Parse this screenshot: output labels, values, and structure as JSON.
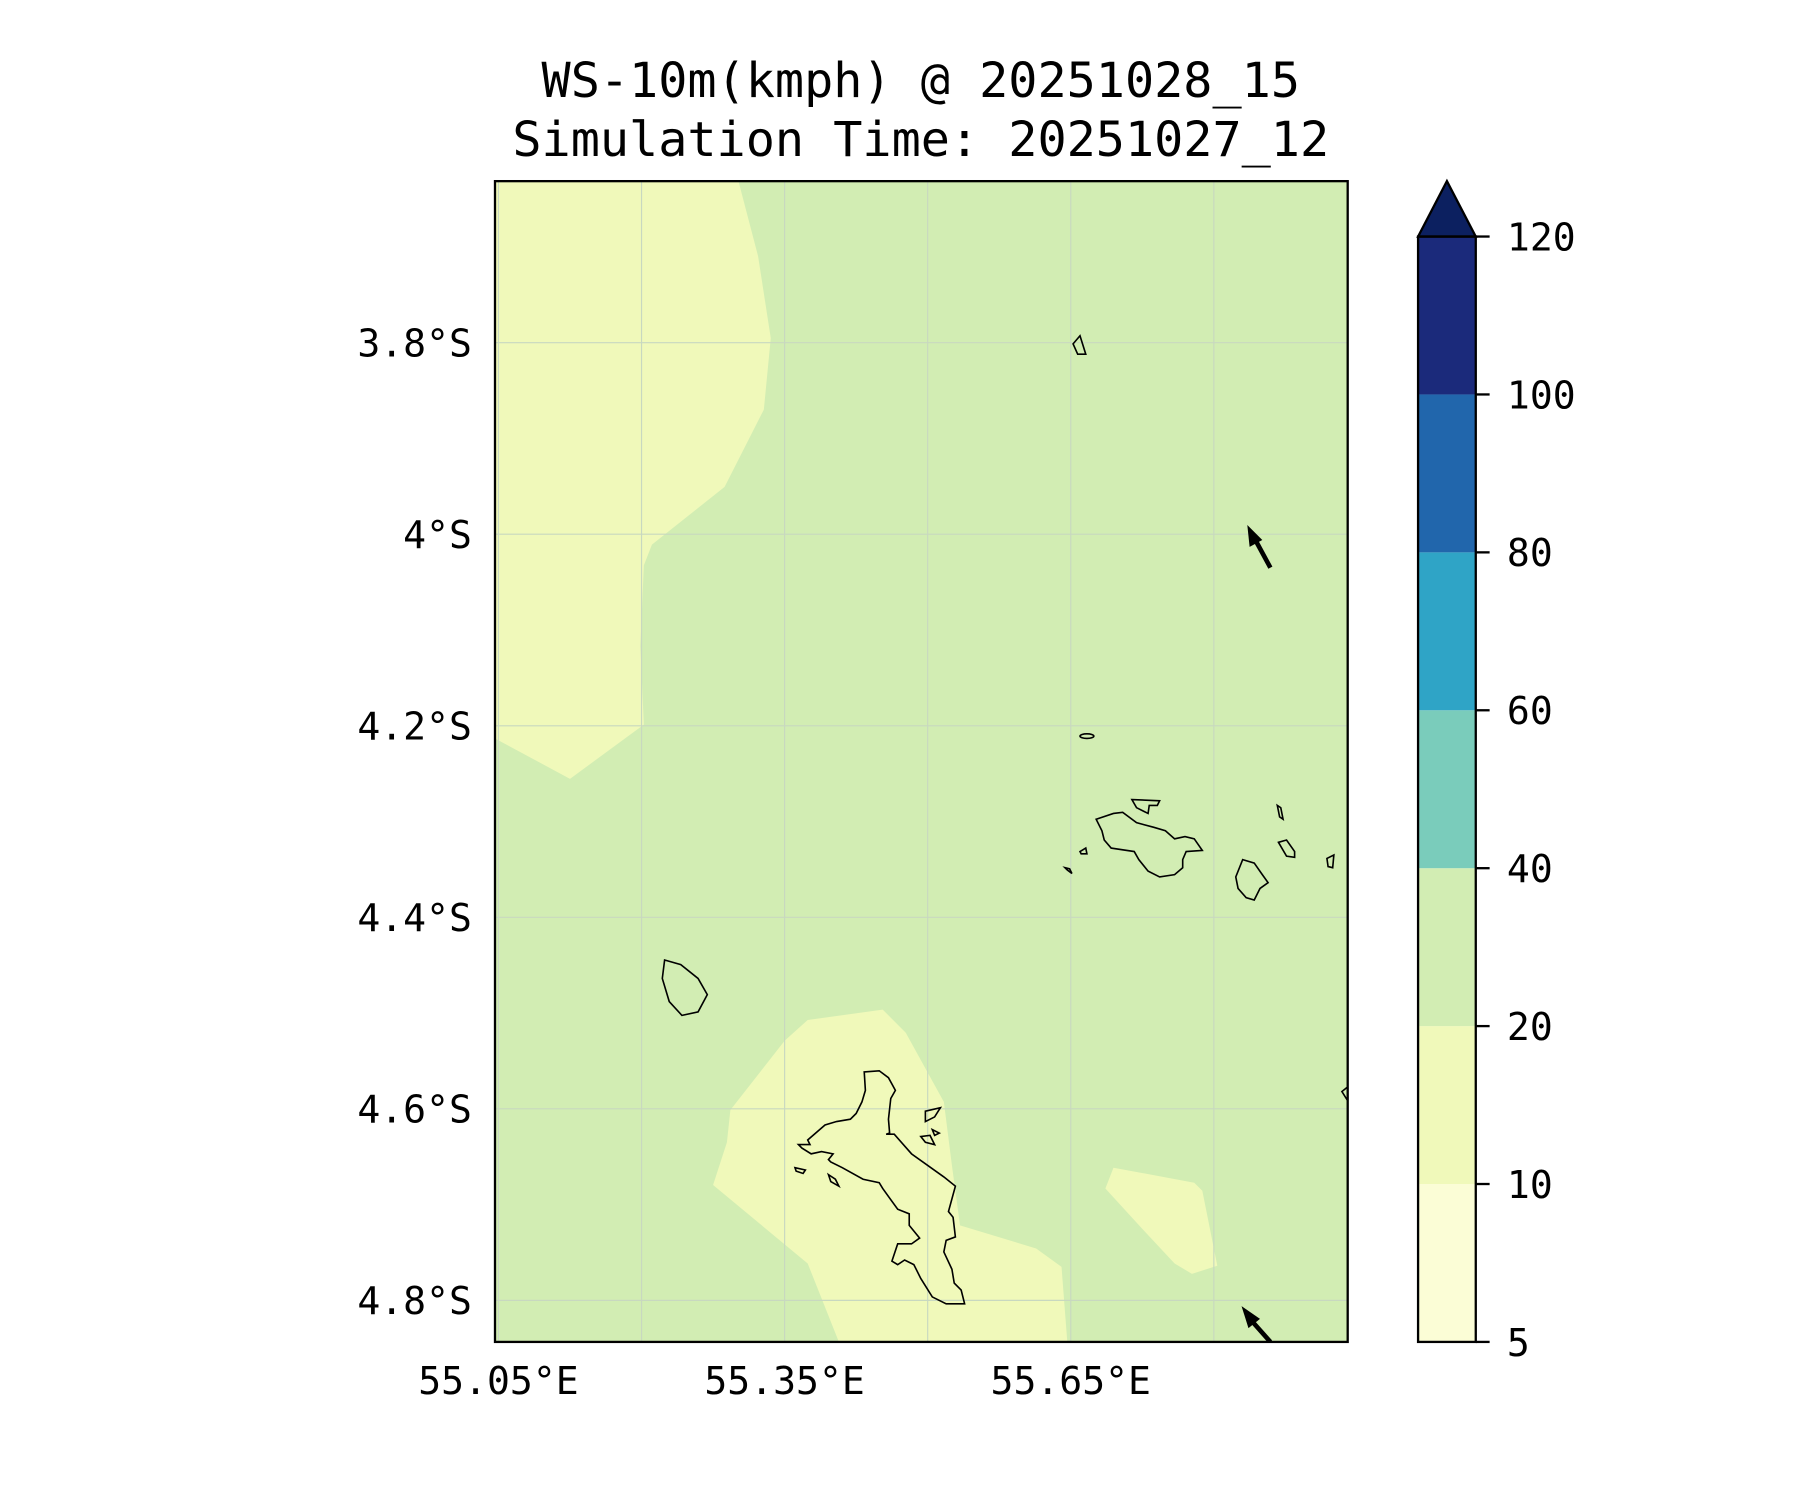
{
  "chart_data": {
    "type": "heatmap",
    "subtype": "filled-contour-map",
    "title": [
      "WS-10m(kmph) @ 20251028_15",
      "Simulation Time: 20251027_12"
    ],
    "variable": "WS-10m",
    "units": "kmph",
    "valid_time": "20251028_15",
    "simulation_time": "20251027_12",
    "xlabel": "",
    "ylabel": "",
    "xlim": [
      55.05,
      55.95
    ],
    "ylim": [
      -4.85,
      -3.63
    ],
    "grid": true,
    "x_ticks": [
      55.05,
      55.35,
      55.65
    ],
    "x_tick_labels": [
      "55.05°E",
      "55.35°E",
      "55.65°E"
    ],
    "y_ticks": [
      -3.8,
      -4.0,
      -4.2,
      -4.4,
      -4.6,
      -4.8
    ],
    "y_tick_labels": [
      "3.8°S",
      "4°S",
      "4.2°S",
      "4.4°S",
      "4.6°S",
      "4.8°S"
    ],
    "colorbar": {
      "levels": [
        5,
        10,
        20,
        40,
        60,
        80,
        100,
        120
      ],
      "tick_labels": [
        "5",
        "10",
        "20",
        "40",
        "60",
        "80",
        "100",
        "120"
      ],
      "colors": [
        "#fbfdd6",
        "#f0f9ba",
        "#d2edb3",
        "#7accbb",
        "#2fa4c6",
        "#2166ac",
        "#1b2a7b"
      ],
      "extend_color": "#0c2060",
      "extend": "max"
    },
    "regions": [
      {
        "range": [
          20,
          40
        ],
        "area": "background / most of domain"
      },
      {
        "range": [
          10,
          20
        ],
        "area": "north-west"
      },
      {
        "range": [
          10,
          20
        ],
        "area": "around Mahé (south)"
      },
      {
        "range": [
          10,
          20
        ],
        "area": "south-east patch"
      }
    ],
    "wind_vectors": [
      {
        "lon": 55.83,
        "lat": -4.02,
        "direction": "north-north-west"
      },
      {
        "lon": 55.83,
        "lat": -4.83,
        "direction": "north-west"
      }
    ]
  }
}
